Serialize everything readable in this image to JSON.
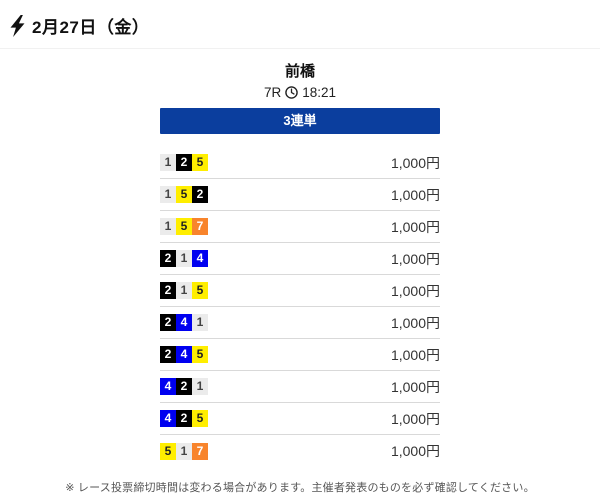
{
  "header": {
    "date_label": "2月27日（金）"
  },
  "race": {
    "venue": "前橋",
    "race_no": "7R",
    "time": "18:21"
  },
  "bet_type": {
    "label": "3連単"
  },
  "bets": [
    {
      "numbers": [
        1,
        2,
        5
      ],
      "amount": "1,000円"
    },
    {
      "numbers": [
        1,
        5,
        2
      ],
      "amount": "1,000円"
    },
    {
      "numbers": [
        1,
        5,
        7
      ],
      "amount": "1,000円"
    },
    {
      "numbers": [
        2,
        1,
        4
      ],
      "amount": "1,000円"
    },
    {
      "numbers": [
        2,
        1,
        5
      ],
      "amount": "1,000円"
    },
    {
      "numbers": [
        2,
        4,
        1
      ],
      "amount": "1,000円"
    },
    {
      "numbers": [
        2,
        4,
        5
      ],
      "amount": "1,000円"
    },
    {
      "numbers": [
        4,
        2,
        1
      ],
      "amount": "1,000円"
    },
    {
      "numbers": [
        4,
        2,
        5
      ],
      "amount": "1,000円"
    },
    {
      "numbers": [
        5,
        1,
        7
      ],
      "amount": "1,000円"
    }
  ],
  "footer": {
    "notice": "※ レース投票締切時間は変わる場合があります。主催者発表のものを必ず確認してください。"
  },
  "colors": {
    "banner_bg": "#0b3e9e",
    "number_colors": {
      "1": {
        "bg": "#ebebeb",
        "fg": "#444444"
      },
      "2": {
        "bg": "#000000",
        "fg": "#ffffff"
      },
      "3": {
        "bg": "#e8342c",
        "fg": "#ffffff"
      },
      "4": {
        "bg": "#0000f0",
        "fg": "#ffffff"
      },
      "5": {
        "bg": "#ffee00",
        "fg": "#222222"
      },
      "6": {
        "bg": "#1d9b49",
        "fg": "#ffffff"
      },
      "7": {
        "bg": "#f8842c",
        "fg": "#ffffff"
      }
    }
  }
}
